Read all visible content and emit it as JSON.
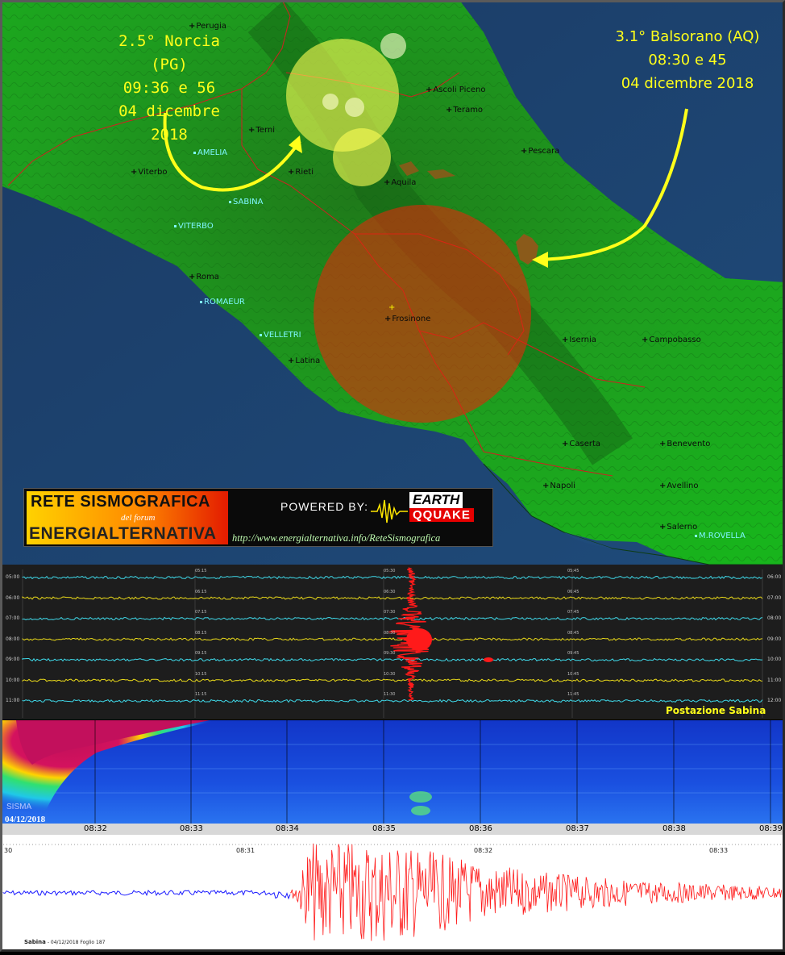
{
  "quakes": {
    "norcia": {
      "magnitude": "2.5° Norcia (PG)",
      "time": "09:36 e 56",
      "date": "04 dicembre 2018"
    },
    "balsorano": {
      "magnitude": "3.1° Balsorano (AQ)",
      "time": "08:30 e 45",
      "date": "04 dicembre 2018"
    }
  },
  "cities": {
    "perugia": "Perugia",
    "ascoli": "Ascoli Piceno",
    "teramo": "Teramo",
    "terni": "Terni",
    "pescara": "Pescara",
    "viterbo": "Viterbo",
    "rieti": "Rieti",
    "aquila": "Aquila",
    "roma": "Roma",
    "frosinone": "Frosinone",
    "latina": "Latina",
    "isernia": "Isernia",
    "campobasso": "Campobasso",
    "caserta": "Caserta",
    "benevento": "Benevento",
    "napoli": "Napoli",
    "avellino": "Avellino",
    "salerno": "Salerno"
  },
  "stations": {
    "amelia": "AMELIA",
    "sabina": "SABINA",
    "viterbo": "VITERBO",
    "romaeur": "ROMAEUR",
    "velletri": "VELLETRI",
    "mrovella": "M.ROVELLA"
  },
  "banner": {
    "title": "RETE SISMOGRAFICA",
    "subtitle": "del forum",
    "name": "ENERGIALTERNATIVA",
    "powered": "POWERED BY:",
    "brand_top": "EARTH",
    "brand_bottom": "QQUAKE",
    "url": "http://www.energialternativa.info/ReteSismografica"
  },
  "helicorder": {
    "left_times": [
      "05:00",
      "06:00",
      "07:00",
      "08:00",
      "09:00",
      "10:00",
      "11:00"
    ],
    "right_times": [
      "06:00",
      "07:00",
      "08:00",
      "09:00",
      "10:00",
      "11:00",
      "12:00"
    ],
    "mid15": [
      "05:15",
      "06:15",
      "07:15",
      "08:15",
      "09:15",
      "10:15",
      "11:15"
    ],
    "mid30": [
      "05:30",
      "06:30",
      "07:30",
      "08:30",
      "09:30",
      "10:30",
      "11:30"
    ],
    "mid45": [
      "05:45",
      "06:45",
      "07:45",
      "08:45",
      "09:45",
      "10:45",
      "11:45"
    ],
    "station_label": "Postazione Sabina"
  },
  "spectrogram": {
    "label": "SISMA",
    "date": "04/12/2018",
    "ticks": [
      "08:32",
      "08:33",
      "08:34",
      "08:35",
      "08:36",
      "08:37",
      "08:38",
      "08:39"
    ]
  },
  "trace": {
    "ticks": [
      "30",
      "08:31",
      "08:32",
      "08:33"
    ],
    "footer_station": "Sabina",
    "footer_text": "- 04/12/2018 Foglio 187"
  },
  "colors": {
    "quake_label": "#ffff1a",
    "station": "#7ff7ff",
    "trace_pre": "#1a1aff",
    "trace_event": "#ff1a1a"
  }
}
